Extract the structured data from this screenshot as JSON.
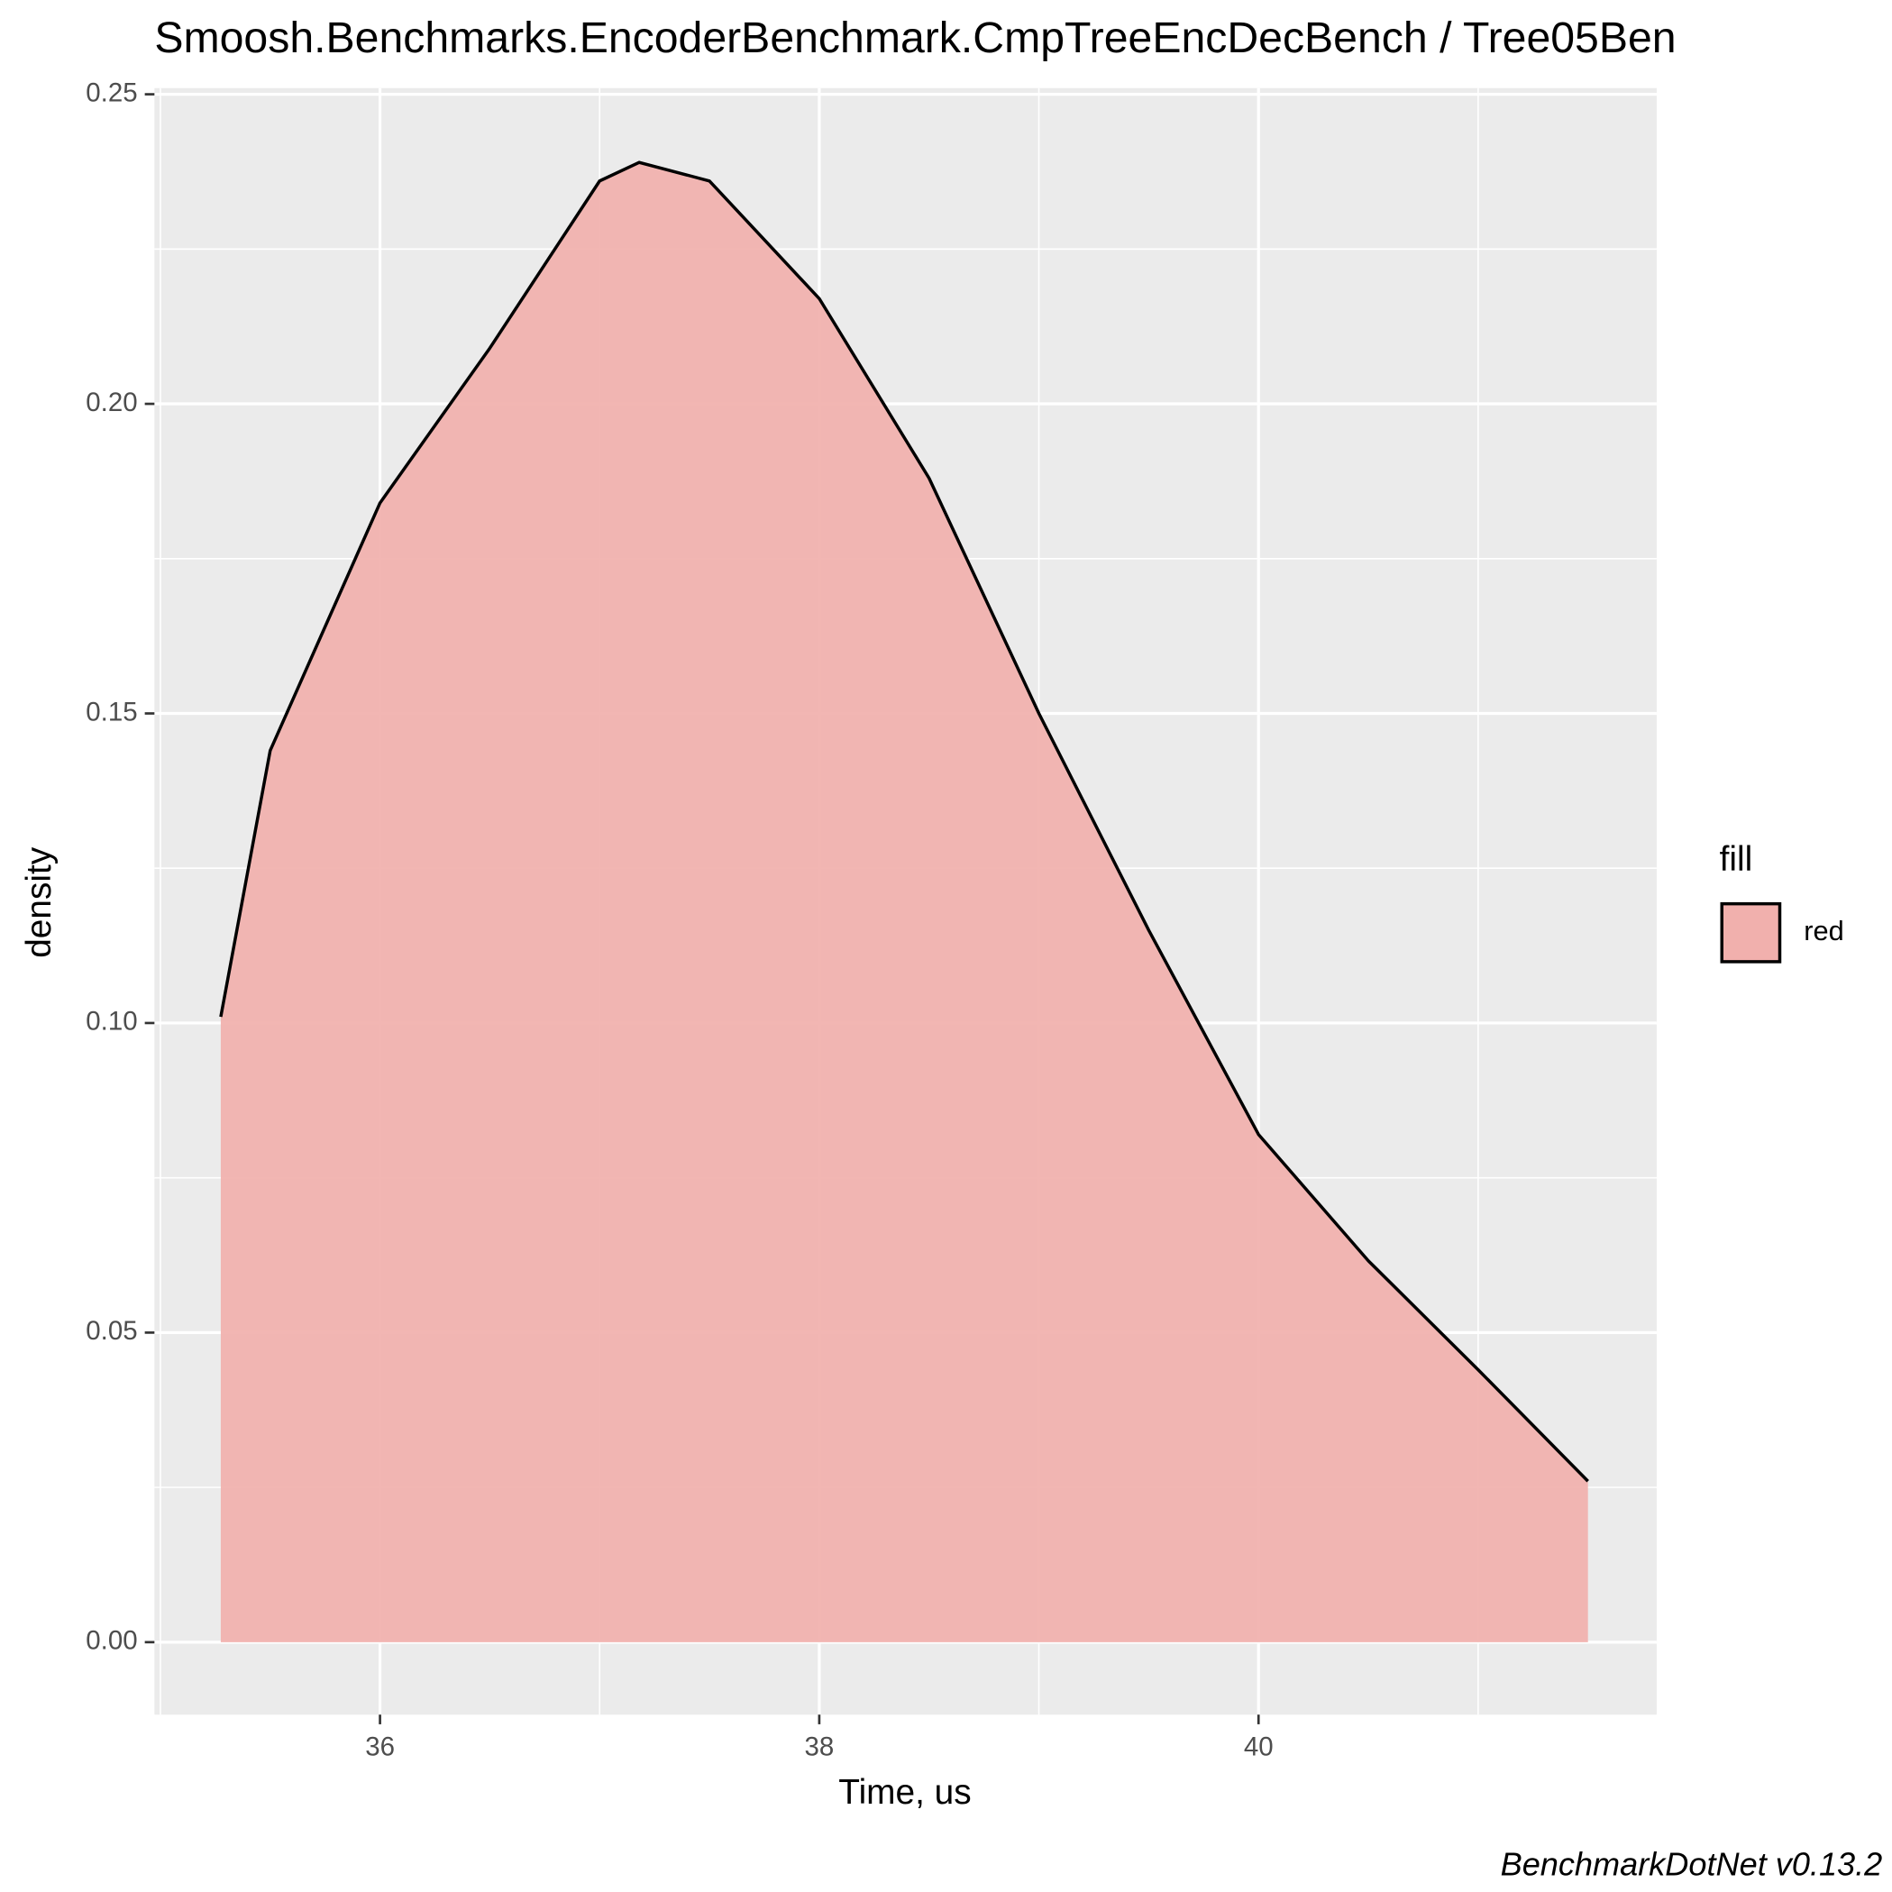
{
  "chart_data": {
    "type": "area",
    "title": "Smoosh.Benchmarks.EncoderBenchmark.CmpTreeEncDecBench / Tree05Ben",
    "x_label": "Time, us",
    "y_label": "density",
    "caption": "BenchmarkDotNet v0.13.2",
    "legend": {
      "title": "fill",
      "position": "right"
    },
    "series": [
      {
        "name": "red",
        "color": "#f1b0ad",
        "line_color": "#000000",
        "x": [
          35.275,
          35.5,
          36,
          36.5,
          37,
          37.18,
          37.5,
          38,
          38.5,
          39,
          39.5,
          40,
          40.5,
          41,
          41.5
        ],
        "values": [
          0.101,
          0.144,
          0.184,
          0.209,
          0.236,
          0.239,
          0.236,
          0.217,
          0.188,
          0.15,
          0.115,
          0.082,
          0.0616,
          0.044,
          0.026
        ]
      }
    ],
    "xlim": [
      34.973,
      41.813
    ],
    "xticks": [
      36,
      38,
      40
    ],
    "ylim": [
      -0.0117,
      0.251
    ],
    "yticks": [
      {
        "value": 0,
        "label": "0.00"
      },
      {
        "value": 0.05,
        "label": "0.05"
      },
      {
        "value": 0.1,
        "label": "0.10"
      },
      {
        "value": 0.15,
        "label": "0.15"
      },
      {
        "value": 0.2,
        "label": "0.20"
      },
      {
        "value": 0.25,
        "label": "0.25"
      }
    ],
    "grid": true,
    "panel_color": "#ebebeb"
  }
}
